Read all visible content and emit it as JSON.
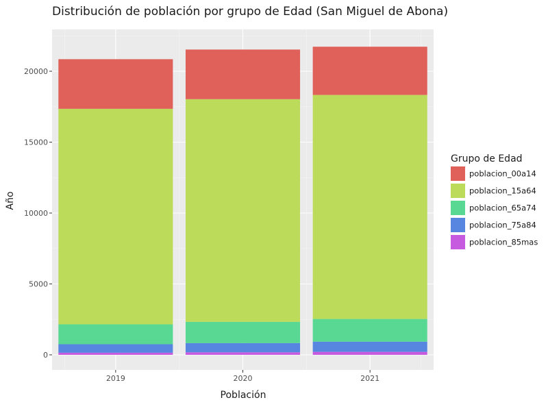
{
  "chart_data": {
    "type": "bar",
    "stacked": true,
    "title": "Distribución de población por grupo de Edad (San Miguel de Abona)",
    "xlabel": "Población",
    "ylabel": "Año",
    "categories": [
      "2019",
      "2020",
      "2021"
    ],
    "ylim": [
      -1000,
      22800
    ],
    "yticks": [
      0,
      5000,
      10000,
      15000,
      20000
    ],
    "ytick_labels": [
      "0",
      "5000",
      "10000",
      "15000",
      "20000"
    ],
    "legend": {
      "title": "Grupo de Edad",
      "position": "right"
    },
    "grid": true,
    "series": [
      {
        "name": "poblacion_00a14",
        "color": "#e0605a",
        "values": [
          3500,
          3500,
          3400
        ]
      },
      {
        "name": "poblacion_15a64",
        "color": "#bcdb5b",
        "values": [
          15200,
          15700,
          15800
        ]
      },
      {
        "name": "poblacion_65a74",
        "color": "#58d892",
        "values": [
          1400,
          1500,
          1600
        ]
      },
      {
        "name": "poblacion_75a84",
        "color": "#5686e0",
        "values": [
          600,
          650,
          720
        ]
      },
      {
        "name": "poblacion_85mas",
        "color": "#c65be0",
        "values": [
          150,
          180,
          210
        ]
      }
    ]
  }
}
